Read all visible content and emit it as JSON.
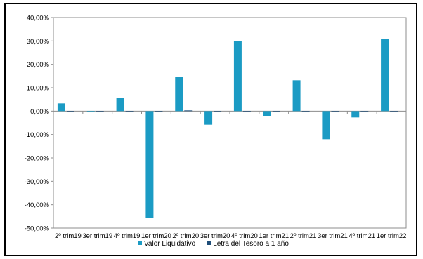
{
  "chart_data": {
    "type": "bar",
    "categories": [
      "2º trim19",
      "3er trim19",
      "4º trim19",
      "1er trim20",
      "2º trim20",
      "3er trim20",
      "4º trim20",
      "1er trim21",
      "2º trim21",
      "3er trim21",
      "4º trim21",
      "1er trim22"
    ],
    "series": [
      {
        "name": "Valor Liquidativo",
        "color": "#1B9BC4",
        "values": [
          3.3,
          -0.5,
          5.5,
          -45.7,
          14.5,
          -5.8,
          30.0,
          -2.0,
          13.2,
          -12.0,
          -2.7,
          30.8
        ]
      },
      {
        "name": "Letra del Tesoro a 1 año",
        "color": "#1F4E79",
        "values": [
          -0.2,
          -0.3,
          -0.3,
          -0.3,
          0.3,
          -0.3,
          -0.4,
          -0.4,
          -0.4,
          -0.4,
          -0.5,
          -0.5
        ]
      }
    ],
    "ylim": [
      -50,
      40
    ],
    "yticks": [
      "-50,00%",
      "-40,00%",
      "-30,00%",
      "-20,00%",
      "-10,00%",
      "0,00%",
      "10,00%",
      "20,00%",
      "30,00%",
      "40,00%"
    ],
    "ytick_values": [
      -50,
      -40,
      -30,
      -20,
      -10,
      0,
      10,
      20,
      30,
      40
    ],
    "grid": false,
    "legend_position": "bottom",
    "title": "",
    "xlabel": "",
    "ylabel": ""
  }
}
